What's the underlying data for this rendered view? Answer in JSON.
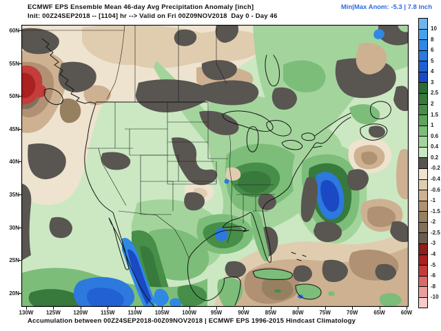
{
  "header": {
    "title": "ECMWF EPS Ensemble Mean 46-day Avg Precipitation Anomaly [inch]",
    "init_line": "Init: 00Z24SEP2018 -- [1104] hr --> Valid on Fri 00Z09NOV2018  Day 0 - Day 46",
    "minmax_label": "Min|Max Anom: -5.3 | 7.8 inch",
    "minmax_color": "#2e6be0"
  },
  "footer": {
    "caption": "Accumulation between 00Z24SEP2018-00Z09NOV2018 | ECMWF EPS 1996-2015 Hindcast Climatology"
  },
  "axes": {
    "lat_labels": [
      "60N",
      "55N",
      "50N",
      "45N",
      "40N",
      "35N",
      "30N",
      "25N",
      "20N"
    ],
    "lon_labels": [
      "130W",
      "125W",
      "120W",
      "115W",
      "110W",
      "105W",
      "100W",
      "95W",
      "90W",
      "85W",
      "80W",
      "75W",
      "70W",
      "65W",
      "60W"
    ]
  },
  "colorbar": {
    "unit": "inch",
    "boundary_labels": [
      "10",
      "8",
      "6",
      "5",
      "4",
      "3",
      "2.5",
      "2",
      "1.5",
      "1",
      "0.6",
      "0.4",
      "0.2",
      "-0.2",
      "-0.4",
      "-0.6",
      "-1",
      "-1.5",
      "-2",
      "-2.5",
      "-3",
      "-4",
      "-5",
      "-6",
      "-8",
      "-10"
    ],
    "cell_colors": [
      "#6fb6f0",
      "#49a0ec",
      "#2f88e4",
      "#2d79de",
      "#2261d4",
      "#1b49c4",
      "#2d6b33",
      "#38793c",
      "#478e49",
      "#5ba55c",
      "#7cbd7a",
      "#a3d49c",
      "#c9e7c0",
      "#595551",
      "#eee3cf",
      "#e0cdb0",
      "#cdb191",
      "#b09174",
      "#97805f",
      "#83705a",
      "#6b5d4e",
      "#8f1d1d",
      "#ab2020",
      "#c43c3c",
      "#da6a6a",
      "#eb9e9e",
      "#f6caca"
    ]
  }
}
